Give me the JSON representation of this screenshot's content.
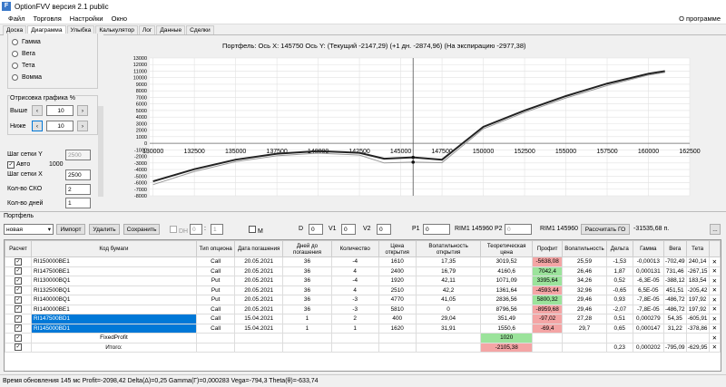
{
  "app": {
    "title": "OptionFVV версия 2.1 public",
    "logo": "OptionFVV-logo-icon"
  },
  "menu": {
    "items": [
      "Файл",
      "Торговля",
      "Настройки",
      "Окно"
    ],
    "about": "О программе"
  },
  "tabs": [
    "Доска",
    "Диаграмма",
    "Улыбка",
    "Калькулятор",
    "Лог",
    "Данные",
    "Сделки"
  ],
  "tabs_active": "Диаграмма",
  "left": {
    "greeks": [
      "Гамма",
      "Вега",
      "Тета",
      "Вомма"
    ],
    "draw_label": "Отрисовка графика %",
    "above_label": "Выше",
    "above_value": "10",
    "below_label": "Ниже",
    "below_value": "10",
    "grid_y_label": "Шаг сетки Y",
    "grid_y_value": "2500",
    "auto_label": "Авто",
    "auto_value": "1000",
    "grid_x_label": "Шаг сетки X",
    "grid_x_value": "2500",
    "sko_label": "Кол-во СКО",
    "sko_value": "2",
    "days_label": "Кол-во дней",
    "days_value": "1"
  },
  "chart_header": "Портфель: Ось X: 145750 Ось Y:  (Текущий -2147,29)  (+1 дн. -2874,96)  (На экспирацию -2977,38)",
  "chart_data": {
    "type": "line",
    "title": "Портфель: Ось X: 145750 Ось Y:  (Текущий -2147,29)  (+1 дн. -2874,96)  (На экспирацию -2977,38)",
    "x_ticks": [
      "130000",
      "132500",
      "135000",
      "137500",
      "140000",
      "142500",
      "145000",
      "147500",
      "150000",
      "152500",
      "155000",
      "157500",
      "160000",
      "162500"
    ],
    "y_ticks": [
      "13000",
      "12000",
      "11000",
      "10000",
      "9000",
      "8000",
      "7000",
      "6000",
      "5000",
      "4000",
      "3000",
      "2000",
      "1000",
      "0",
      "-1000",
      "-2000",
      "-3000",
      "-4000",
      "-5000",
      "-6000",
      "-7000",
      "-8000"
    ],
    "xlim": [
      129800,
      162500
    ],
    "ylim": [
      -8000,
      13000
    ],
    "cursor_x": 145750,
    "series": [
      {
        "values": [
          [
            130000,
            -5800
          ],
          [
            132500,
            -3950
          ],
          [
            135000,
            -2500
          ],
          [
            137500,
            -1600
          ],
          [
            140000,
            -1200
          ],
          [
            142500,
            -1450
          ],
          [
            144000,
            -2350
          ],
          [
            145750,
            -2147
          ],
          [
            147500,
            -2500
          ],
          [
            150000,
            2500
          ],
          [
            152500,
            5000
          ],
          [
            155000,
            7200
          ],
          [
            157500,
            9100
          ],
          [
            160000,
            10600
          ],
          [
            161000,
            11000
          ]
        ]
      },
      {
        "values": [
          [
            130000,
            -6300
          ],
          [
            132500,
            -4300
          ],
          [
            135000,
            -2800
          ],
          [
            137500,
            -1900
          ],
          [
            140000,
            -1500
          ],
          [
            142500,
            -1800
          ],
          [
            144000,
            -3000
          ],
          [
            145750,
            -2875
          ],
          [
            147500,
            -2950
          ],
          [
            150000,
            2200
          ],
          [
            152500,
            4700
          ],
          [
            155000,
            6900
          ],
          [
            157500,
            8800
          ],
          [
            160000,
            10400
          ],
          [
            161000,
            10800
          ]
        ]
      }
    ],
    "grid": true
  },
  "portfolio": {
    "label": "Портфель",
    "name": "новая",
    "import": "Импорт",
    "delete": "Удалить",
    "save": "Сохранить",
    "dh": "DH",
    "dh_values": [
      "0",
      "1"
    ],
    "m": "М",
    "d_label": "D",
    "d_value": "0",
    "v1_label": "V1",
    "v1_value": "0",
    "v2_label": "V2",
    "v2_value": "0",
    "p1_label": "P1",
    "p1_value": "0",
    "ri1": "RIM1 145960",
    "p2_label": "P2",
    "p2_value": "0",
    "ri2": "RIM1 145960",
    "calc_btn": "Рассчитать ГО",
    "go_value": "-31535,68 п.",
    "dots": "..."
  },
  "table": {
    "headers": [
      "Расчет",
      "Код бумаги",
      "Тип опциона",
      "Дата погашения",
      "Дней до погашения",
      "Количество",
      "Цена открытия",
      "Волатильность открытия",
      "Теоретическая цена",
      "Профит",
      "Волатильность",
      "Дельта",
      "Гамма",
      "Вега",
      "Тета",
      ""
    ],
    "rows": [
      [
        "RI150000BE1",
        "Call",
        "20.05.2021",
        "36",
        "-4",
        "1610",
        "17,35",
        "3019,52",
        "-5638,08",
        "25,59",
        "-1,53",
        "-0,00013",
        "-702,49",
        "240,14"
      ],
      [
        "RI147500BE1",
        "Call",
        "20.05.2021",
        "36",
        "4",
        "2400",
        "16,79",
        "4160,6",
        "7042,4",
        "26,46",
        "1,87",
        "0,000131",
        "731,46",
        "-267,15"
      ],
      [
        "RI130000BQ1",
        "Put",
        "20.05.2021",
        "36",
        "-4",
        "1920",
        "42,11",
        "1071,09",
        "3395,64",
        "34,26",
        "0,52",
        "-6,3E-05",
        "-388,12",
        "183,54"
      ],
      [
        "RI132500BQ1",
        "Put",
        "20.05.2021",
        "36",
        "4",
        "2510",
        "42,2",
        "1361,64",
        "-4593,44",
        "32,96",
        "-0,65",
        "6,5E-05",
        "451,51",
        "-205,42"
      ],
      [
        "RI140000BQ1",
        "Put",
        "20.05.2021",
        "36",
        "-3",
        "4770",
        "41,05",
        "2836,56",
        "5800,32",
        "29,46",
        "0,93",
        "-7,8E-05",
        "-486,72",
        "197,92"
      ],
      [
        "RI140000BE1",
        "Call",
        "20.05.2021",
        "36",
        "-3",
        "5810",
        "0",
        "8796,56",
        "-8959,68",
        "29,46",
        "-2,07",
        "-7,8E-05",
        "-486,72",
        "197,92"
      ],
      [
        "RI147500BD1",
        "Call",
        "15.04.2021",
        "1",
        "2",
        "400",
        "29,04",
        "351,49",
        "-97,02",
        "27,28",
        "0,51",
        "0,000279",
        "54,35",
        "-605,91"
      ],
      [
        "RI145000BD1",
        "Call",
        "15.04.2021",
        "1",
        "1",
        "1620",
        "31,91",
        "1550,6",
        "-69,4",
        "29,7",
        "0,65",
        "0,000147",
        "31,22",
        "-378,86"
      ]
    ],
    "fixed_label": "FixedProfit",
    "fixed_value": "1020",
    "total_label": "Итого:",
    "total_profit": "-2105,38",
    "total_delta": "0,23",
    "total_gamma": "0,000202",
    "total_vega": "-795,09",
    "total_theta": "-629,95"
  },
  "status": "Время обновления 145 мс  Profit=-2098,42 Delta(Δ)=0,25 Gamma(Γ)=0,000283 Vega=-794,3 Theta(θ)=-633,74"
}
